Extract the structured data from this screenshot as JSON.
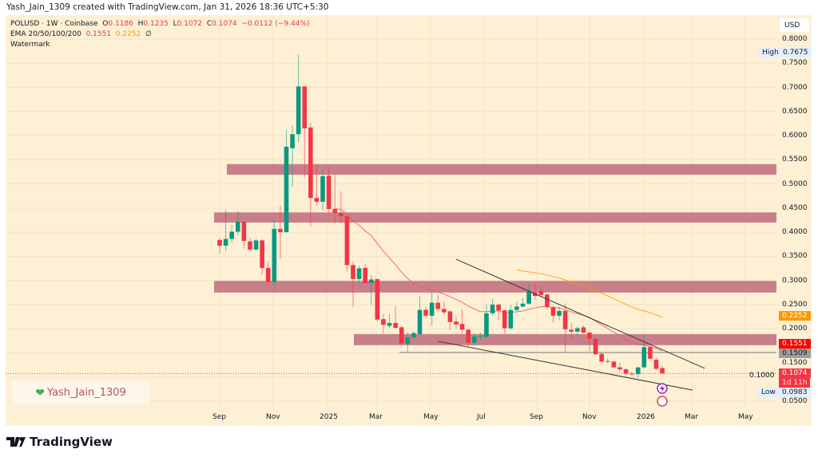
{
  "credit": "Yash_Jain_1309 created with TradingView.com, Jan 31, 2026 18:36 UTC+5:30",
  "legend": {
    "symbol": "POLUSD · 1W · Coinbase",
    "o_label": "O",
    "o": "0.1186",
    "h_label": "H",
    "h": "0.1235",
    "l_label": "L",
    "l": "0.1072",
    "c_label": "C",
    "c": "0.1074",
    "change": "−0.0112 (−9.44%)",
    "ema_label": "EMA 20/50/100/200",
    "ema20": "0.1551",
    "ema50": "0.2252",
    "ema_rest": "∅",
    "watermark": "Watermark"
  },
  "watermark_text": "Yash_Jain_1309",
  "brand": "TradingView",
  "currency": "USD",
  "price_labels": [
    "0.8000",
    "0.7500",
    "0.7000",
    "0.6500",
    "0.6000",
    "0.5500",
    "0.5000",
    "0.4500",
    "0.4000",
    "0.3500",
    "0.3000",
    "0.2500",
    "0.2000",
    "0.1500",
    "0.1000",
    "0.0500"
  ],
  "tags": {
    "high_label": "High",
    "high": "0.7675",
    "ema50": "0.2252",
    "ema20": "0.1551",
    "hline": "0.1509",
    "last": "0.1074",
    "countdown": "1d 11h",
    "low_label": "Low",
    "low": "0.0983"
  },
  "time_labels": [
    "Sep",
    "Nov",
    "2025",
    "Mar",
    "May",
    "Jul",
    "Sep",
    "Nov",
    "2026",
    "Mar",
    "May"
  ],
  "colors": {
    "up": "#089981",
    "down": "#f23645",
    "ema20": "#f7525f",
    "ema50": "#ff9800",
    "zone": "#b5596f",
    "bg": "#fdf0d5"
  },
  "chart_data": {
    "type": "candlestick",
    "title": "POLUSD 1W Coinbase",
    "ylim": [
      0.03,
      0.83
    ],
    "ohlc": [
      [
        0.384,
        0.387,
        0.356,
        0.372
      ],
      [
        0.372,
        0.446,
        0.362,
        0.386
      ],
      [
        0.386,
        0.415,
        0.378,
        0.401
      ],
      [
        0.401,
        0.444,
        0.394,
        0.422
      ],
      [
        0.422,
        0.422,
        0.366,
        0.382
      ],
      [
        0.381,
        0.388,
        0.36,
        0.364
      ],
      [
        0.364,
        0.386,
        0.362,
        0.383
      ],
      [
        0.383,
        0.386,
        0.312,
        0.326
      ],
      [
        0.326,
        0.34,
        0.292,
        0.297
      ],
      [
        0.297,
        0.425,
        0.288,
        0.407
      ],
      [
        0.407,
        0.455,
        0.345,
        0.4
      ],
      [
        0.4,
        0.612,
        0.399,
        0.577
      ],
      [
        0.574,
        0.62,
        0.494,
        0.603
      ],
      [
        0.603,
        0.767,
        0.586,
        0.702
      ],
      [
        0.702,
        0.702,
        0.514,
        0.615
      ],
      [
        0.617,
        0.627,
        0.412,
        0.471
      ],
      [
        0.471,
        0.54,
        0.455,
        0.463
      ],
      [
        0.463,
        0.529,
        0.445,
        0.516
      ],
      [
        0.517,
        0.537,
        0.44,
        0.448
      ],
      [
        0.448,
        0.52,
        0.418,
        0.44
      ],
      [
        0.44,
        0.485,
        0.42,
        0.433
      ],
      [
        0.433,
        0.433,
        0.318,
        0.332
      ],
      [
        0.332,
        0.34,
        0.245,
        0.303
      ],
      [
        0.303,
        0.331,
        0.294,
        0.325
      ],
      [
        0.326,
        0.334,
        0.294,
        0.294
      ],
      [
        0.295,
        0.311,
        0.249,
        0.302
      ],
      [
        0.303,
        0.303,
        0.215,
        0.219
      ],
      [
        0.22,
        0.231,
        0.19,
        0.208
      ],
      [
        0.206,
        0.23,
        0.201,
        0.212
      ],
      [
        0.212,
        0.247,
        0.2,
        0.202
      ],
      [
        0.203,
        0.206,
        0.165,
        0.169
      ],
      [
        0.169,
        0.193,
        0.15,
        0.182
      ],
      [
        0.182,
        0.195,
        0.178,
        0.191
      ],
      [
        0.189,
        0.267,
        0.187,
        0.239
      ],
      [
        0.239,
        0.245,
        0.222,
        0.227
      ],
      [
        0.227,
        0.276,
        0.206,
        0.254
      ],
      [
        0.254,
        0.27,
        0.236,
        0.241
      ],
      [
        0.241,
        0.256,
        0.228,
        0.234
      ],
      [
        0.236,
        0.238,
        0.198,
        0.214
      ],
      [
        0.215,
        0.225,
        0.2,
        0.209
      ],
      [
        0.21,
        0.24,
        0.19,
        0.198
      ],
      [
        0.198,
        0.2,
        0.162,
        0.171
      ],
      [
        0.171,
        0.19,
        0.166,
        0.184
      ],
      [
        0.184,
        0.192,
        0.176,
        0.185
      ],
      [
        0.183,
        0.25,
        0.181,
        0.232
      ],
      [
        0.232,
        0.262,
        0.228,
        0.25
      ],
      [
        0.25,
        0.252,
        0.217,
        0.238
      ],
      [
        0.238,
        0.24,
        0.19,
        0.201
      ],
      [
        0.201,
        0.25,
        0.198,
        0.239
      ],
      [
        0.239,
        0.256,
        0.236,
        0.246
      ],
      [
        0.246,
        0.264,
        0.243,
        0.252
      ],
      [
        0.252,
        0.294,
        0.25,
        0.277
      ],
      [
        0.275,
        0.294,
        0.26,
        0.268
      ],
      [
        0.278,
        0.286,
        0.265,
        0.27
      ],
      [
        0.271,
        0.272,
        0.24,
        0.245
      ],
      [
        0.245,
        0.248,
        0.212,
        0.227
      ],
      [
        0.227,
        0.245,
        0.218,
        0.237
      ],
      [
        0.237,
        0.253,
        0.15,
        0.199
      ],
      [
        0.198,
        0.212,
        0.176,
        0.194
      ],
      [
        0.194,
        0.205,
        0.184,
        0.201
      ],
      [
        0.203,
        0.207,
        0.19,
        0.192
      ],
      [
        0.192,
        0.195,
        0.153,
        0.179
      ],
      [
        0.179,
        0.18,
        0.146,
        0.147
      ],
      [
        0.148,
        0.15,
        0.128,
        0.132
      ],
      [
        0.133,
        0.139,
        0.13,
        0.132
      ],
      [
        0.132,
        0.133,
        0.118,
        0.12
      ],
      [
        0.12,
        0.13,
        0.111,
        0.116
      ],
      [
        0.116,
        0.118,
        0.104,
        0.107
      ],
      [
        0.107,
        0.11,
        0.102,
        0.106
      ],
      [
        0.106,
        0.121,
        0.0983,
        0.12
      ],
      [
        0.12,
        0.186,
        0.119,
        0.162
      ],
      [
        0.162,
        0.166,
        0.136,
        0.138
      ],
      [
        0.136,
        0.14,
        0.115,
        0.117
      ],
      [
        0.1186,
        0.1235,
        0.1072,
        0.1074
      ]
    ],
    "indicators": [
      {
        "name": "EMA 20",
        "last": 0.1551
      },
      {
        "name": "EMA 50",
        "last": 0.2252
      }
    ],
    "zones": [
      [
        0.519,
        0.541
      ],
      [
        0.42,
        0.441
      ],
      [
        0.275,
        0.299
      ],
      [
        0.166,
        0.189
      ]
    ],
    "horizontal_line": 0.1509,
    "trendlines": [
      {
        "from": [
          39,
          0.344
        ],
        "to": [
          80,
          0.118
        ]
      },
      {
        "from": [
          36,
          0.174
        ],
        "to": [
          78,
          0.073
        ]
      }
    ],
    "high": 0.7675,
    "low": 0.0983
  }
}
